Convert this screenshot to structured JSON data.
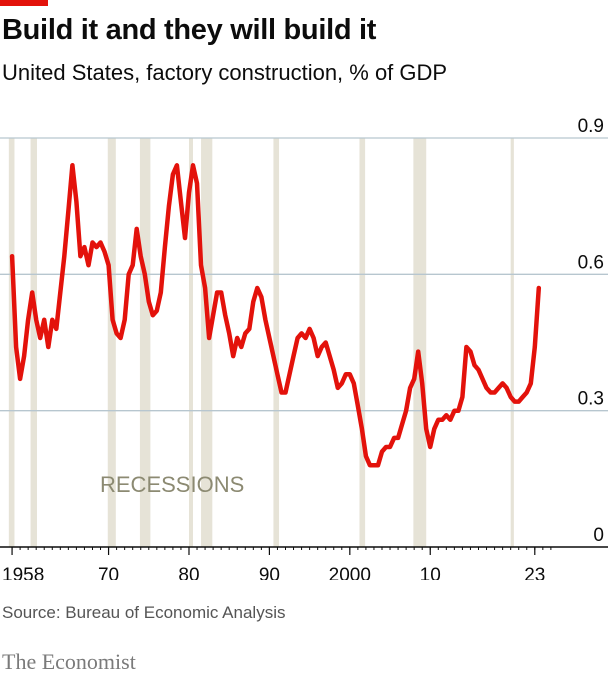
{
  "brand": {
    "accent": "#e3120b",
    "name": "The Economist"
  },
  "title": "Build it and they will build it",
  "subtitle": "United States, factory construction, % of GDP",
  "source": "Source: Bureau of Economic Analysis",
  "chart_data": {
    "type": "line",
    "title": "Build it and they will build it",
    "subtitle": "United States, factory construction, % of GDP",
    "xlabel": "",
    "ylabel": "",
    "xlim": [
      1956.5,
      2028
    ],
    "ylim": [
      0,
      0.9
    ],
    "y_ticks": [
      {
        "value": 0,
        "label": "0"
      },
      {
        "value": 0.3,
        "label": "0.3"
      },
      {
        "value": 0.6,
        "label": "0.6"
      },
      {
        "value": 0.9,
        "label": "0.9"
      }
    ],
    "x_ticks": [
      {
        "value": 1958,
        "label": "1958"
      },
      {
        "value": 1970,
        "label": "70"
      },
      {
        "value": 1980,
        "label": "80"
      },
      {
        "value": 1990,
        "label": "90"
      },
      {
        "value": 2000,
        "label": "2000"
      },
      {
        "value": 2010,
        "label": "10"
      },
      {
        "value": 2023,
        "label": "23"
      }
    ],
    "grid": true,
    "y_axis_position": "right",
    "line_color": "#e3120b",
    "shade_color": "#e6e3d7",
    "recessions_label": "RECESSIONS",
    "recessions": [
      [
        1957.6,
        1958.3
      ],
      [
        1960.3,
        1961.1
      ],
      [
        1969.9,
        1970.9
      ],
      [
        1973.9,
        1975.2
      ],
      [
        1980.0,
        1980.5
      ],
      [
        1981.5,
        1982.9
      ],
      [
        1990.5,
        1991.2
      ],
      [
        2001.2,
        2001.9
      ],
      [
        2007.9,
        2009.5
      ],
      [
        2020.0,
        2020.4
      ]
    ],
    "series": [
      {
        "x": [
          1958.0,
          1958.5,
          1959.0,
          1959.5,
          1960.0,
          1960.5,
          1961.0,
          1961.5,
          1962.0,
          1962.5,
          1963.0,
          1963.5,
          1964.0,
          1964.5,
          1965.0,
          1965.5,
          1966.0,
          1966.5,
          1967.0,
          1967.5,
          1968.0,
          1968.5,
          1969.0,
          1969.5,
          1970.0,
          1970.5,
          1971.0,
          1971.5,
          1972.0,
          1972.5,
          1973.0,
          1973.5,
          1974.0,
          1974.5,
          1975.0,
          1975.5,
          1976.0,
          1976.5,
          1977.0,
          1977.5,
          1978.0,
          1978.5,
          1979.0,
          1979.5,
          1980.0,
          1980.5,
          1981.0,
          1981.5,
          1982.0,
          1982.5,
          1983.0,
          1983.5,
          1984.0,
          1984.5,
          1985.0,
          1985.5,
          1986.0,
          1986.5,
          1987.0,
          1987.5,
          1988.0,
          1988.5,
          1989.0,
          1989.5,
          1990.0,
          1990.5,
          1991.0,
          1991.5,
          1992.0,
          1992.5,
          1993.0,
          1993.5,
          1994.0,
          1994.5,
          1995.0,
          1995.5,
          1996.0,
          1996.5,
          1997.0,
          1997.5,
          1998.0,
          1998.5,
          1999.0,
          1999.5,
          2000.0,
          2000.5,
          2001.0,
          2001.5,
          2002.0,
          2002.5,
          2003.0,
          2003.5,
          2004.0,
          2004.5,
          2005.0,
          2005.5,
          2006.0,
          2006.5,
          2007.0,
          2007.5,
          2008.0,
          2008.5,
          2009.0,
          2009.5,
          2010.0,
          2010.5,
          2011.0,
          2011.5,
          2012.0,
          2012.5,
          2013.0,
          2013.5,
          2014.0,
          2014.5,
          2015.0,
          2015.5,
          2016.0,
          2016.5,
          2017.0,
          2017.5,
          2018.0,
          2018.5,
          2019.0,
          2019.5,
          2020.0,
          2020.5,
          2021.0,
          2021.5,
          2022.0,
          2022.5,
          2023.0,
          2023.5
        ],
        "y": [
          0.64,
          0.44,
          0.37,
          0.42,
          0.5,
          0.56,
          0.5,
          0.46,
          0.5,
          0.44,
          0.5,
          0.48,
          0.56,
          0.64,
          0.74,
          0.84,
          0.76,
          0.64,
          0.66,
          0.62,
          0.67,
          0.66,
          0.67,
          0.65,
          0.62,
          0.5,
          0.47,
          0.46,
          0.5,
          0.6,
          0.62,
          0.7,
          0.64,
          0.6,
          0.54,
          0.51,
          0.52,
          0.56,
          0.66,
          0.75,
          0.82,
          0.84,
          0.76,
          0.68,
          0.78,
          0.84,
          0.8,
          0.62,
          0.57,
          0.46,
          0.51,
          0.56,
          0.56,
          0.51,
          0.47,
          0.42,
          0.46,
          0.44,
          0.47,
          0.48,
          0.54,
          0.57,
          0.55,
          0.5,
          0.46,
          0.42,
          0.38,
          0.34,
          0.34,
          0.38,
          0.42,
          0.46,
          0.47,
          0.46,
          0.48,
          0.46,
          0.42,
          0.44,
          0.45,
          0.42,
          0.39,
          0.35,
          0.36,
          0.38,
          0.38,
          0.36,
          0.31,
          0.26,
          0.2,
          0.18,
          0.18,
          0.18,
          0.21,
          0.22,
          0.22,
          0.24,
          0.24,
          0.27,
          0.3,
          0.35,
          0.37,
          0.43,
          0.36,
          0.26,
          0.22,
          0.26,
          0.28,
          0.28,
          0.29,
          0.28,
          0.3,
          0.3,
          0.33,
          0.44,
          0.43,
          0.4,
          0.39,
          0.37,
          0.35,
          0.34,
          0.34,
          0.35,
          0.36,
          0.35,
          0.33,
          0.32,
          0.32,
          0.33,
          0.34,
          0.36,
          0.44,
          0.57
        ]
      }
    ]
  }
}
